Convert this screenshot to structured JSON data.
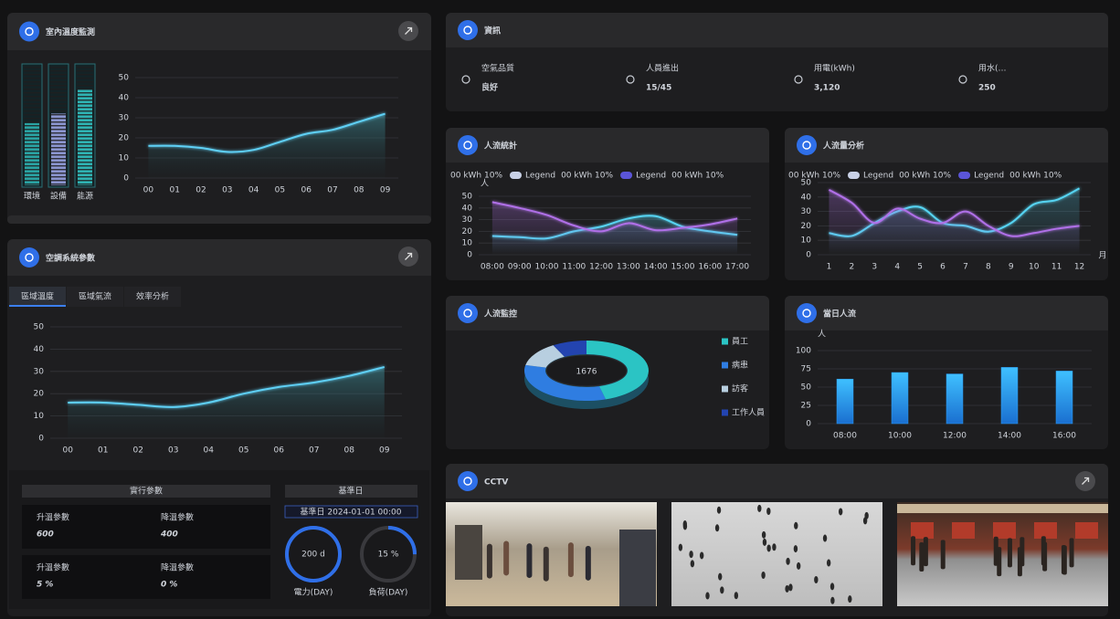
{
  "temp_monitor": {
    "title": "室內溫度監測",
    "gauges": {
      "categories": [
        "環境",
        "設備",
        "能源"
      ],
      "values": [
        52,
        60,
        80
      ],
      "colors": [
        "#2aa3a3",
        "#8b95cf",
        "#2fb3b3"
      ],
      "ylim": [
        0,
        100
      ]
    },
    "chart": {
      "type": "line",
      "categories": [
        "00",
        "01",
        "02",
        "03",
        "04",
        "05",
        "06",
        "07",
        "08",
        "09"
      ],
      "values": [
        16,
        16,
        15,
        13,
        14,
        18,
        22,
        24,
        28,
        32
      ],
      "color": "#5fd0f5",
      "ylim": [
        0,
        50
      ],
      "yticks": [
        0,
        10,
        20,
        30,
        40,
        50
      ],
      "grid": true
    }
  },
  "hvac": {
    "title": "空調系統參數",
    "tabs": [
      "區域溫度",
      "區域氣流",
      "效率分析"
    ],
    "active_tab": 0,
    "chart": {
      "type": "line",
      "categories": [
        "00",
        "01",
        "02",
        "03",
        "04",
        "05",
        "06",
        "07",
        "08",
        "09"
      ],
      "values": [
        16,
        16,
        15,
        14,
        16,
        20,
        23,
        25,
        28,
        32
      ],
      "color": "#5fd0f5",
      "ylim": [
        0,
        50
      ],
      "yticks": [
        0,
        10,
        20,
        30,
        40,
        50
      ],
      "grid": true
    },
    "params": {
      "title": "實行參數",
      "items": [
        {
          "label": "升溫參數",
          "value": "600"
        },
        {
          "label": "降溫參數",
          "value": "400"
        },
        {
          "label": "升溫參數",
          "value": "5 %"
        },
        {
          "label": "降溫參數",
          "value": "0 %"
        }
      ]
    },
    "baseline": {
      "title": "基準日",
      "date": "基準日 2024-01-01 00:00",
      "rings": [
        {
          "value": "200 d",
          "label": "電力(DAY)"
        },
        {
          "value": "15 %",
          "label": "負荷(DAY)"
        }
      ]
    }
  },
  "info": {
    "title": "資訊",
    "items": [
      {
        "label": "空氣品質",
        "value": "良好"
      },
      {
        "label": "人員進出",
        "value": "15/45"
      },
      {
        "label": "用電(kWh)",
        "value": "3,120"
      },
      {
        "label": "用水(…",
        "value": "250"
      }
    ]
  },
  "flow_stats": {
    "title": "人流統計",
    "chart": {
      "type": "line",
      "y_label": "人",
      "legend_lead": "00 kWh 10%",
      "categories": [
        "08:00",
        "09:00",
        "10:00",
        "11:00",
        "12:00",
        "13:00",
        "14:00",
        "15:00",
        "16:00",
        "17:00"
      ],
      "series": [
        {
          "name": "Legend",
          "detail": "00 kWh 10%",
          "swatch": "#c9d1e6",
          "color": "#56d4f2",
          "values": [
            16,
            15,
            14,
            20,
            24,
            31,
            33,
            24,
            20,
            17
          ]
        },
        {
          "name": "Legend",
          "detail": "00 kWh 10%",
          "swatch": "#5b55d8",
          "color": "#b070e8",
          "values": [
            45,
            40,
            34,
            25,
            20,
            27,
            21,
            23,
            26,
            31
          ]
        }
      ],
      "ylim": [
        0,
        50
      ],
      "yticks": [
        0,
        10,
        20,
        30,
        40,
        50
      ],
      "grid": true
    }
  },
  "flow_analysis": {
    "title": "人流量分析",
    "chart": {
      "type": "line",
      "x_unit": "月",
      "legend_lead": "00 kWh 10%",
      "categories": [
        "1",
        "2",
        "3",
        "4",
        "5",
        "6",
        "7",
        "8",
        "9",
        "10",
        "11",
        "12"
      ],
      "series": [
        {
          "name": "Legend",
          "detail": "00 kWh 10%",
          "swatch": "#c9d1e6",
          "color": "#56d4f2",
          "values": [
            15,
            13,
            22,
            30,
            33,
            22,
            20,
            16,
            22,
            35,
            38,
            46
          ]
        },
        {
          "name": "Legend",
          "detail": "00 kWh 10%",
          "swatch": "#5b55d8",
          "color": "#b070e8",
          "values": [
            45,
            36,
            22,
            32,
            25,
            22,
            30,
            20,
            13,
            15,
            18,
            20
          ]
        }
      ],
      "ylim": [
        0,
        50
      ],
      "yticks": [
        0,
        10,
        20,
        30,
        40,
        50
      ],
      "grid": true
    }
  },
  "flow_monitor": {
    "title": "人流監控",
    "chart": {
      "type": "donut",
      "total": 1676,
      "categories": [
        "員工",
        "病患",
        "訪客",
        "工作人員"
      ],
      "values": [
        45,
        33,
        13,
        9
      ],
      "colors": [
        "#2bc4c4",
        "#2f7de1",
        "#b8cfe0",
        "#2344b0"
      ]
    }
  },
  "daily_flow": {
    "title": "當日人流",
    "chart": {
      "type": "bar",
      "y_label": "人",
      "categories": [
        "08:00",
        "10:00",
        "12:00",
        "14:00",
        "16:00"
      ],
      "values": [
        61,
        70,
        68,
        77,
        72
      ],
      "color": "#2a9cf5",
      "ylim": [
        0,
        100
      ],
      "yticks": [
        0,
        25,
        50,
        75,
        100
      ],
      "grid": true
    }
  },
  "cctv": {
    "title": "CCTV"
  }
}
